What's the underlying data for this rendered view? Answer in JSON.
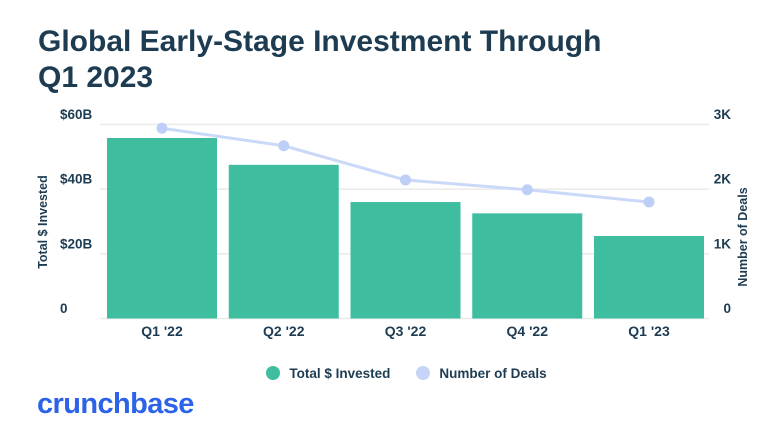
{
  "header": {
    "title_lines": [
      "Global Early-Stage Investment Through",
      "Q1 2023"
    ]
  },
  "chart_data": {
    "type": "bar+line",
    "title": "Global Early-Stage Investment Through Q1 2023",
    "categories": [
      "Q1 '22",
      "Q2 '22",
      "Q3 '22",
      "Q4 '22",
      "Q1 '23"
    ],
    "series": [
      {
        "name": "Total $ Invested",
        "type": "bar",
        "axis": "left",
        "unit": "USD billions",
        "values": [
          55.8,
          47.5,
          36,
          32.5,
          25.5
        ],
        "color": "#3ebe9e"
      },
      {
        "name": "Number of Deals",
        "type": "line",
        "axis": "right",
        "unit": "deals",
        "values": [
          2940,
          2670,
          2140,
          1990,
          1800
        ],
        "color": "#cbd9f8",
        "point_color": "#bdcff6"
      }
    ],
    "left_axis": {
      "label": "Total $ Invested",
      "tick_labels": [
        "$60B",
        "$40B",
        "$20B",
        "0"
      ],
      "tick_values": [
        60,
        40,
        20,
        0
      ],
      "range": [
        0,
        60
      ]
    },
    "right_axis": {
      "label": "Number of Deals",
      "tick_labels": [
        "3K",
        "2K",
        "1K",
        "0"
      ],
      "tick_values": [
        3000,
        2000,
        1000,
        0
      ],
      "range": [
        0,
        3000
      ]
    },
    "grid": true,
    "legend_position": "bottom"
  },
  "legend": {
    "items": [
      {
        "label": "Total $ Invested",
        "color": "#3ebe9e"
      },
      {
        "label": "Number of Deals",
        "color": "#c5d5f7"
      }
    ]
  },
  "footer": {
    "logo_text": "crunchbase",
    "logo_color": "#2d63e9"
  },
  "colors": {
    "text_navy": "#1d3c52",
    "gridline": "#eaeaea",
    "background": "#ffffff"
  }
}
